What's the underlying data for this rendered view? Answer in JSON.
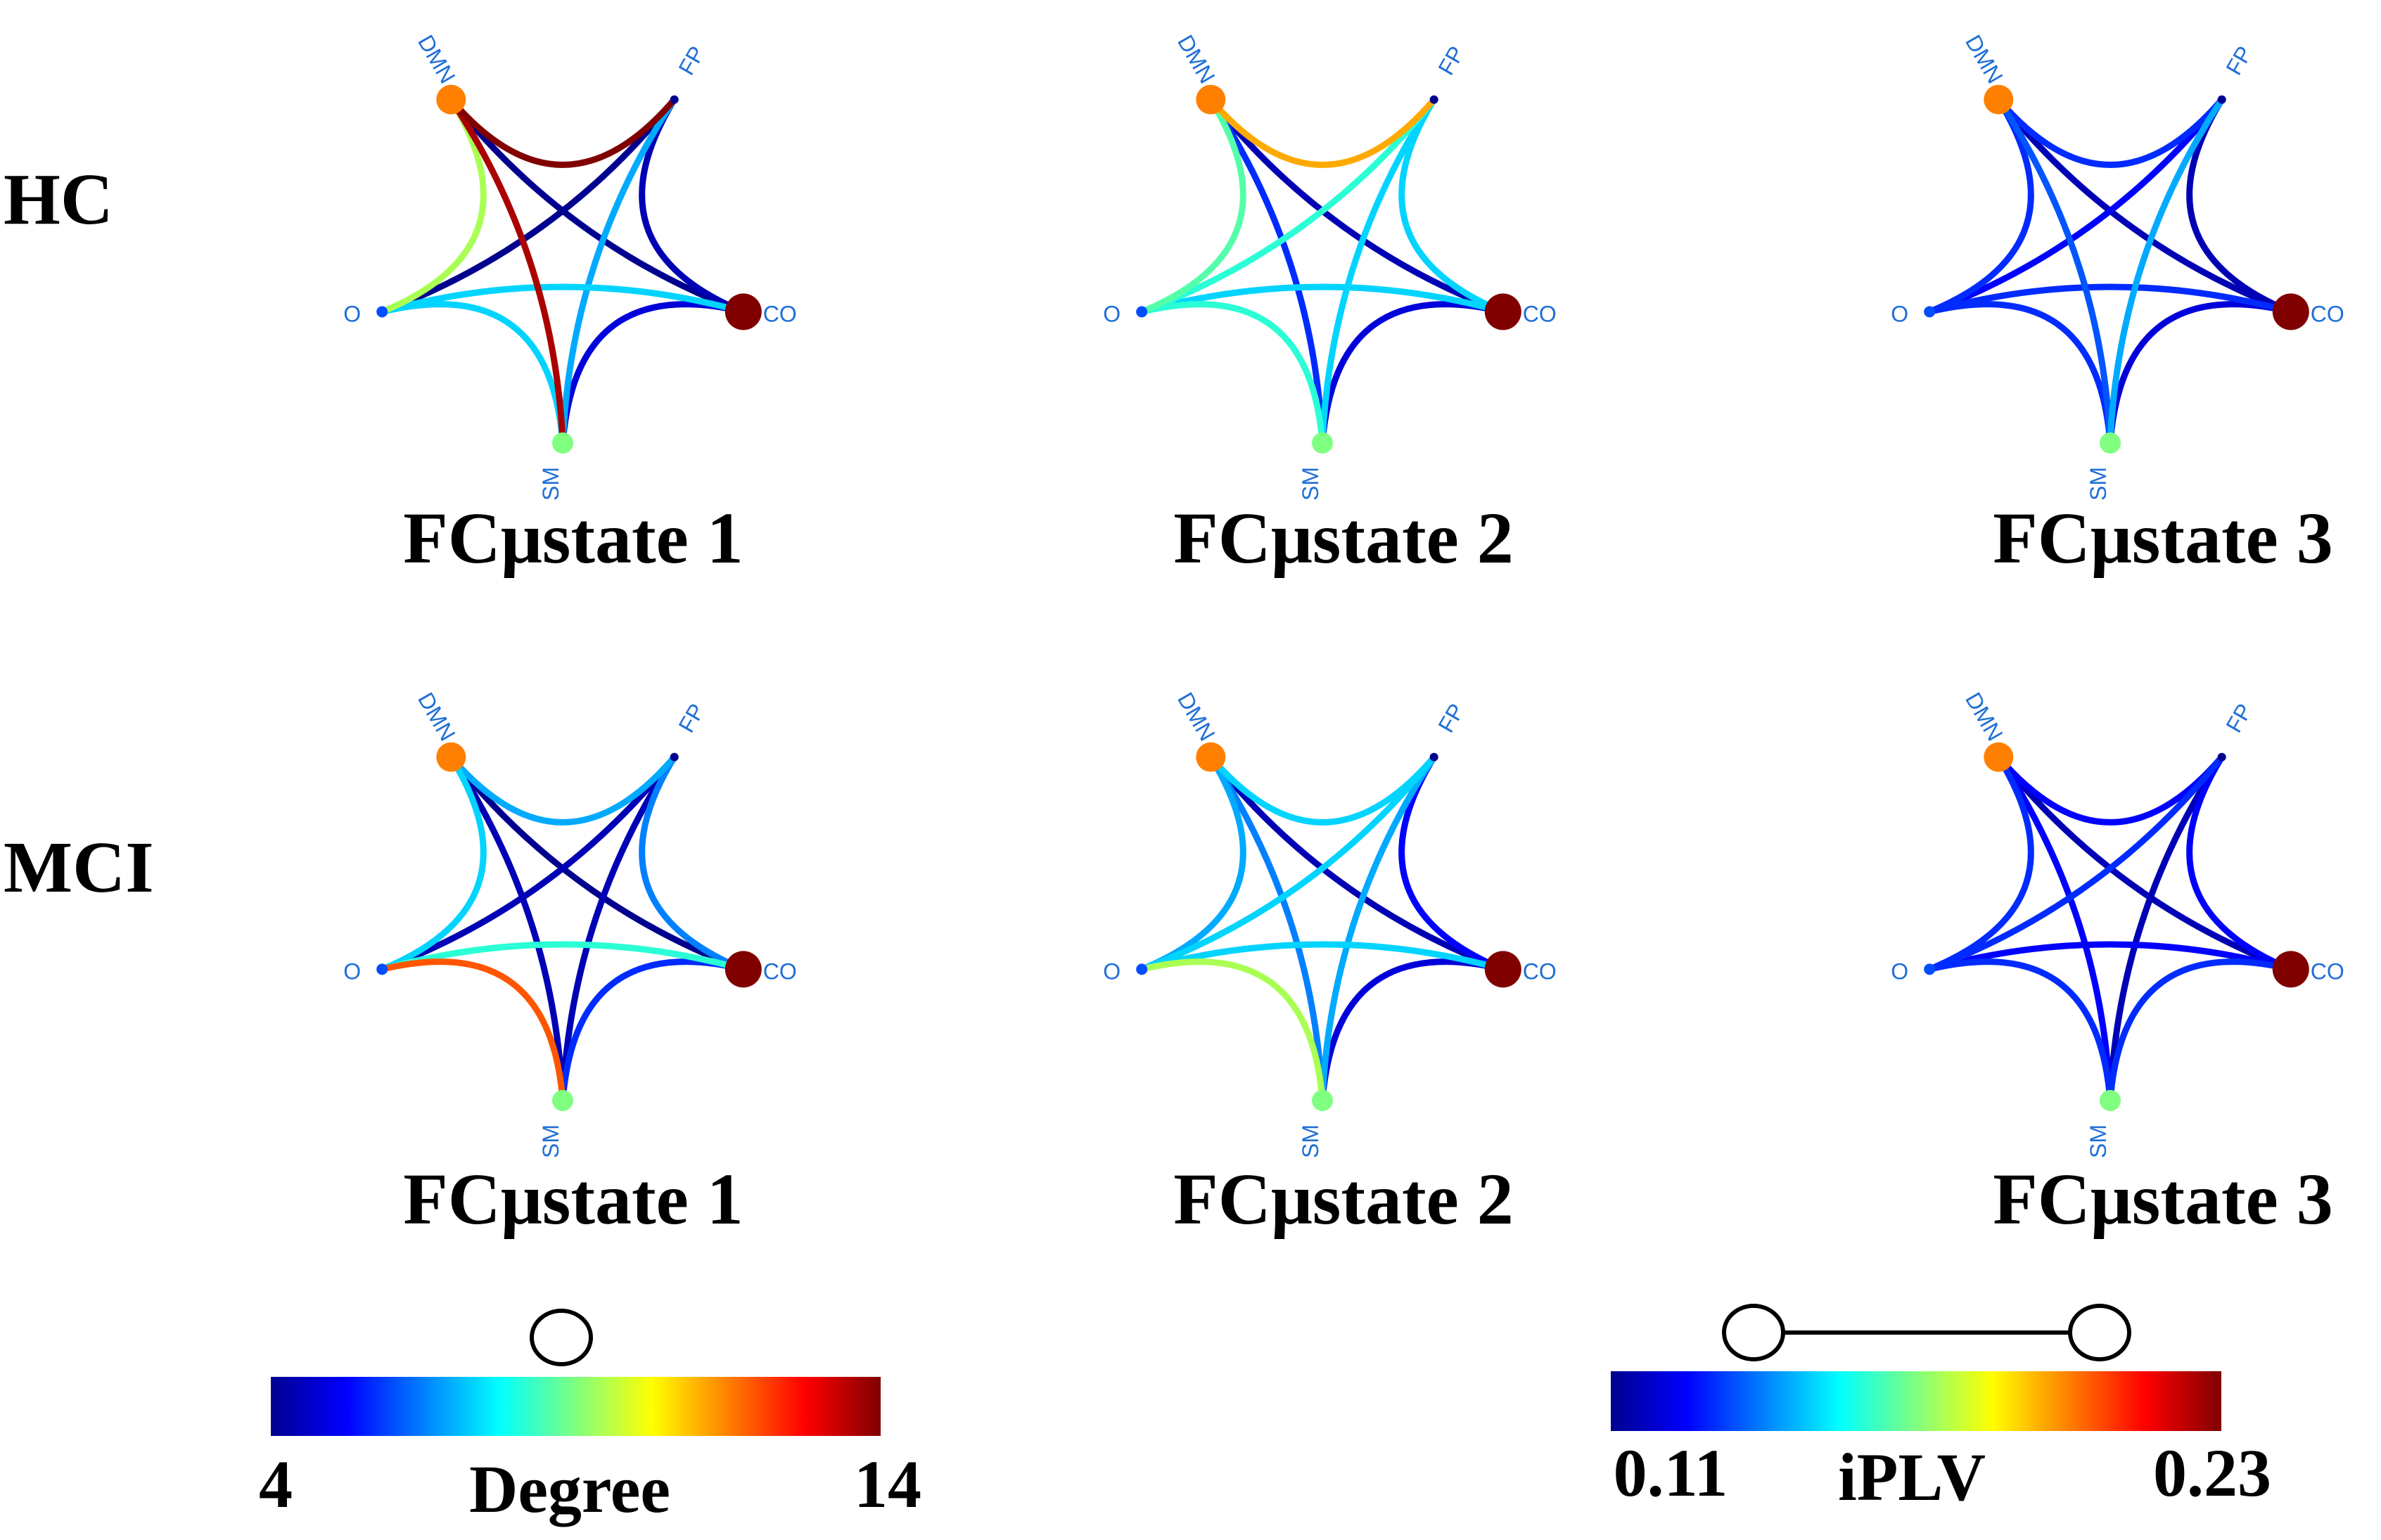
{
  "rows": [
    {
      "label": "HC",
      "key": "hc"
    },
    {
      "label": "MCI",
      "key": "mci"
    }
  ],
  "node_names": [
    "DMN",
    "FP",
    "CO",
    "SM",
    "O"
  ],
  "label_color": "#1f6fd6",
  "panels": [
    {
      "row": "HC",
      "title": "FCμstate 1",
      "node_degree": {
        "DMN": 11.5,
        "FP": 4,
        "CO": 14,
        "SM": 9,
        "O": 6
      },
      "edges": [
        {
          "a": "DMN",
          "b": "FP",
          "iplv": 0.23
        },
        {
          "a": "DMN",
          "b": "CO",
          "iplv": 0.11
        },
        {
          "a": "DMN",
          "b": "SM",
          "iplv": 0.225
        },
        {
          "a": "DMN",
          "b": "O",
          "iplv": 0.175
        },
        {
          "a": "FP",
          "b": "CO",
          "iplv": 0.115
        },
        {
          "a": "FP",
          "b": "SM",
          "iplv": 0.145
        },
        {
          "a": "FP",
          "b": "O",
          "iplv": 0.11
        },
        {
          "a": "CO",
          "b": "SM",
          "iplv": 0.12
        },
        {
          "a": "CO",
          "b": "O",
          "iplv": 0.15
        },
        {
          "a": "SM",
          "b": "O",
          "iplv": 0.15
        }
      ]
    },
    {
      "row": "HC",
      "title": "FCμstate 2",
      "node_degree": {
        "DMN": 11.5,
        "FP": 4,
        "CO": 14,
        "SM": 9,
        "O": 6
      },
      "edges": [
        {
          "a": "DMN",
          "b": "FP",
          "iplv": 0.195
        },
        {
          "a": "DMN",
          "b": "CO",
          "iplv": 0.115
        },
        {
          "a": "DMN",
          "b": "SM",
          "iplv": 0.13
        },
        {
          "a": "DMN",
          "b": "O",
          "iplv": 0.165
        },
        {
          "a": "FP",
          "b": "CO",
          "iplv": 0.15
        },
        {
          "a": "FP",
          "b": "SM",
          "iplv": 0.15
        },
        {
          "a": "FP",
          "b": "O",
          "iplv": 0.16
        },
        {
          "a": "CO",
          "b": "SM",
          "iplv": 0.12
        },
        {
          "a": "CO",
          "b": "O",
          "iplv": 0.15
        },
        {
          "a": "SM",
          "b": "O",
          "iplv": 0.16
        }
      ]
    },
    {
      "row": "HC",
      "title": "FCμstate 3",
      "node_degree": {
        "DMN": 11.5,
        "FP": 4,
        "CO": 14,
        "SM": 9,
        "O": 6
      },
      "edges": [
        {
          "a": "DMN",
          "b": "FP",
          "iplv": 0.13
        },
        {
          "a": "DMN",
          "b": "CO",
          "iplv": 0.115
        },
        {
          "a": "DMN",
          "b": "SM",
          "iplv": 0.135
        },
        {
          "a": "DMN",
          "b": "O",
          "iplv": 0.13
        },
        {
          "a": "FP",
          "b": "CO",
          "iplv": 0.115
        },
        {
          "a": "FP",
          "b": "SM",
          "iplv": 0.145
        },
        {
          "a": "FP",
          "b": "O",
          "iplv": 0.125
        },
        {
          "a": "CO",
          "b": "SM",
          "iplv": 0.12
        },
        {
          "a": "CO",
          "b": "O",
          "iplv": 0.13
        },
        {
          "a": "SM",
          "b": "O",
          "iplv": 0.13
        }
      ]
    },
    {
      "row": "MCI",
      "title": "FCμstate 1",
      "node_degree": {
        "DMN": 11.5,
        "FP": 4,
        "CO": 14,
        "SM": 9,
        "O": 6
      },
      "edges": [
        {
          "a": "DMN",
          "b": "FP",
          "iplv": 0.145
        },
        {
          "a": "DMN",
          "b": "CO",
          "iplv": 0.11
        },
        {
          "a": "DMN",
          "b": "SM",
          "iplv": 0.115
        },
        {
          "a": "DMN",
          "b": "O",
          "iplv": 0.15
        },
        {
          "a": "FP",
          "b": "CO",
          "iplv": 0.14
        },
        {
          "a": "FP",
          "b": "SM",
          "iplv": 0.115
        },
        {
          "a": "FP",
          "b": "O",
          "iplv": 0.115
        },
        {
          "a": "CO",
          "b": "SM",
          "iplv": 0.13
        },
        {
          "a": "CO",
          "b": "O",
          "iplv": 0.16
        },
        {
          "a": "SM",
          "b": "O",
          "iplv": 0.205
        }
      ]
    },
    {
      "row": "MCI",
      "title": "FCμstate 2",
      "node_degree": {
        "DMN": 11.5,
        "FP": 4,
        "CO": 14,
        "SM": 9,
        "O": 6
      },
      "edges": [
        {
          "a": "DMN",
          "b": "FP",
          "iplv": 0.15
        },
        {
          "a": "DMN",
          "b": "CO",
          "iplv": 0.115
        },
        {
          "a": "DMN",
          "b": "SM",
          "iplv": 0.14
        },
        {
          "a": "DMN",
          "b": "O",
          "iplv": 0.145
        },
        {
          "a": "FP",
          "b": "CO",
          "iplv": 0.125
        },
        {
          "a": "FP",
          "b": "SM",
          "iplv": 0.145
        },
        {
          "a": "FP",
          "b": "O",
          "iplv": 0.15
        },
        {
          "a": "CO",
          "b": "SM",
          "iplv": 0.12
        },
        {
          "a": "CO",
          "b": "O",
          "iplv": 0.15
        },
        {
          "a": "SM",
          "b": "O",
          "iplv": 0.175
        }
      ]
    },
    {
      "row": "MCI",
      "title": "FCμstate 3",
      "node_degree": {
        "DMN": 11.5,
        "FP": 4,
        "CO": 14,
        "SM": 9,
        "O": 6
      },
      "edges": [
        {
          "a": "DMN",
          "b": "FP",
          "iplv": 0.125
        },
        {
          "a": "DMN",
          "b": "CO",
          "iplv": 0.115
        },
        {
          "a": "DMN",
          "b": "SM",
          "iplv": 0.125
        },
        {
          "a": "DMN",
          "b": "O",
          "iplv": 0.13
        },
        {
          "a": "FP",
          "b": "CO",
          "iplv": 0.125
        },
        {
          "a": "FP",
          "b": "SM",
          "iplv": 0.115
        },
        {
          "a": "FP",
          "b": "O",
          "iplv": 0.13
        },
        {
          "a": "CO",
          "b": "SM",
          "iplv": 0.13
        },
        {
          "a": "CO",
          "b": "O",
          "iplv": 0.125
        },
        {
          "a": "SM",
          "b": "O",
          "iplv": 0.13
        }
      ]
    }
  ],
  "legend_degree": {
    "min_label": "4",
    "max_label": "14",
    "title": "Degree",
    "min": 4,
    "max": 14
  },
  "legend_iplv": {
    "min_label": "0.11",
    "max_label": "0.23",
    "title": "iPLV",
    "min": 0.11,
    "max": 0.23
  },
  "colormap": [
    "#00008f",
    "#0000ff",
    "#00ffff",
    "#ffff00",
    "#ff0000",
    "#800000"
  ]
}
